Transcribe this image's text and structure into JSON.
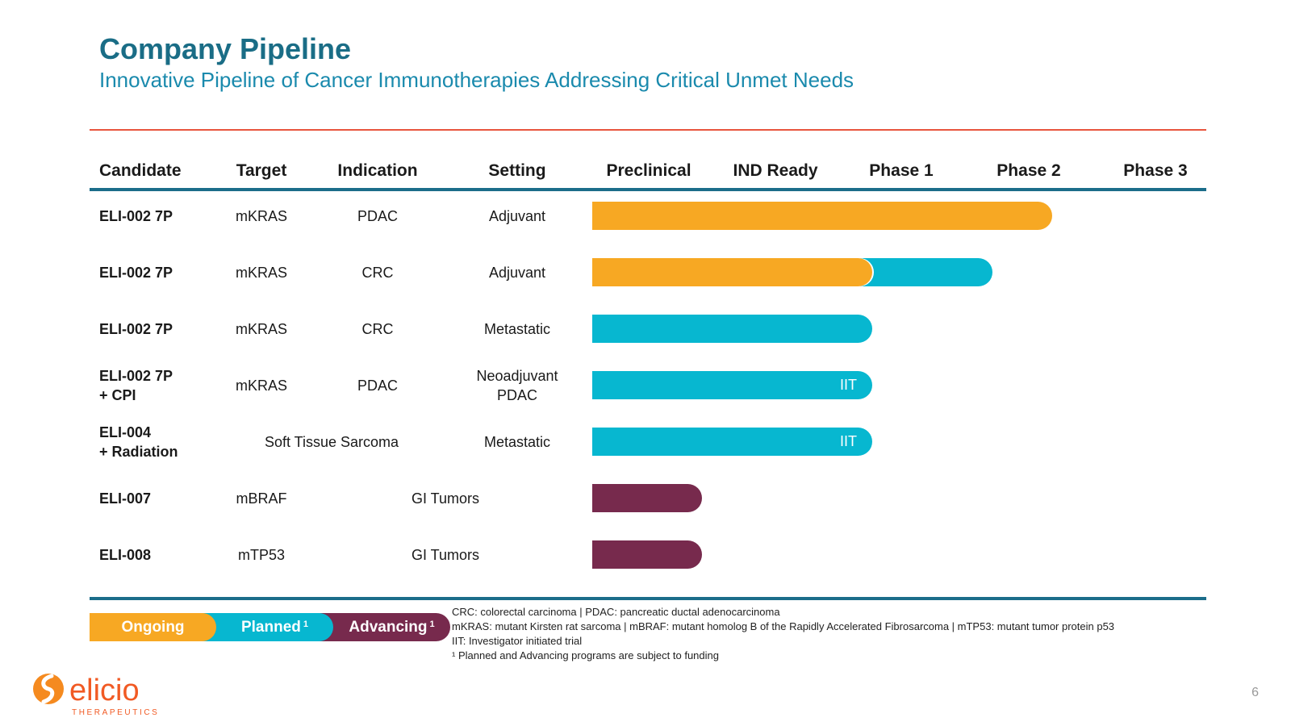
{
  "header": {
    "title": "Company Pipeline",
    "subtitle": "Innovative Pipeline of Cancer Immunotherapies Addressing Critical Unmet Needs"
  },
  "columns": {
    "candidate": "Candidate",
    "target": "Target",
    "indication": "Indication",
    "setting": "Setting",
    "phases": [
      "Preclinical",
      "IND Ready",
      "Phase 1",
      "Phase 2",
      "Phase 3"
    ]
  },
  "rows": [
    {
      "candidate": [
        "ELI-002 7P"
      ],
      "target": "mKRAS",
      "indication": "PDAC",
      "setting": [
        "Adjuvant"
      ],
      "progress": 0.92,
      "status": "ongoing"
    },
    {
      "candidate": [
        "ELI-002 7P"
      ],
      "target": "mKRAS",
      "indication": "CRC",
      "setting": [
        "Adjuvant"
      ],
      "progress": 0.8,
      "status": "ongoing-planned",
      "ongoing_to": 0.56
    },
    {
      "candidate": [
        "ELI-002 7P"
      ],
      "target": "mKRAS",
      "indication": "CRC",
      "setting": [
        "Metastatic"
      ],
      "progress": 0.56,
      "status": "planned"
    },
    {
      "candidate": [
        "ELI-002 7P",
        "+ CPI"
      ],
      "target": "mKRAS",
      "indication": "PDAC",
      "setting": [
        "Neoadjuvant",
        "PDAC"
      ],
      "progress": 0.56,
      "status": "planned",
      "label": "IIT"
    },
    {
      "candidate": [
        "ELI-004",
        "+ Radiation"
      ],
      "target_indication": "Soft Tissue Sarcoma",
      "setting": [
        "Metastatic"
      ],
      "progress": 0.56,
      "status": "planned",
      "label": "IIT"
    },
    {
      "candidate": [
        "ELI-007"
      ],
      "target": "mBRAF",
      "indication_setting": "GI Tumors",
      "progress": 0.22,
      "status": "advancing"
    },
    {
      "candidate": [
        "ELI-008"
      ],
      "target": "mTP53",
      "indication_setting": "GI Tumors",
      "progress": 0.22,
      "status": "advancing"
    }
  ],
  "legend": {
    "ongoing": "Ongoing",
    "planned": "Planned",
    "advancing": "Advancing",
    "footnote_mark": "1"
  },
  "colors": {
    "ongoing": "#f7a823",
    "planned": "#07b7d0",
    "advancing": "#772a4d",
    "title": "#1a6d86",
    "rule_red": "#e8553e",
    "rule_blue": "#1b6d8a"
  },
  "footnotes": [
    "CRC: colorectal carcinoma | PDAC: pancreatic ductal adenocarcinoma",
    "mKRAS: mutant Kirsten rat sarcoma | mBRAF: mutant homolog B of the Rapidly Accelerated Fibrosarcoma | mTP53: mutant tumor protein p53",
    "IIT: Investigator initiated trial",
    "¹ Planned and Advancing programs are subject to funding"
  ],
  "logo": {
    "name": "elicio",
    "tagline": "THERAPEUTICS"
  },
  "page_number": "6"
}
